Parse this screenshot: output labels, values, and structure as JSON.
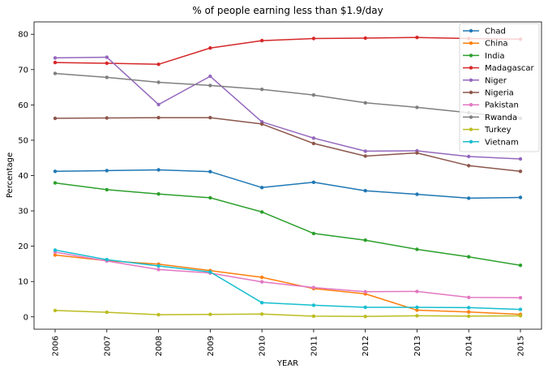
{
  "chart_data": {
    "type": "line",
    "title": "% of people earning less than $1.9/day",
    "xlabel": "YEAR",
    "ylabel": "Percentage",
    "x": [
      "2006",
      "2007",
      "2008",
      "2009",
      "2010",
      "2011",
      "2012",
      "2013",
      "2014",
      "2015"
    ],
    "ylim": [
      -3.5,
      83.5
    ],
    "yticks": [
      0,
      10,
      20,
      30,
      40,
      50,
      60,
      70,
      80
    ],
    "grid": false,
    "legend_position": "top-right",
    "series": [
      {
        "name": "Chad",
        "color": "#1f77b4",
        "values": [
          41.2,
          41.4,
          41.6,
          41.1,
          36.6,
          38.1,
          35.7,
          34.7,
          33.6,
          33.8
        ]
      },
      {
        "name": "China",
        "color": "#ff7f0e",
        "values": [
          17.5,
          15.9,
          14.9,
          13.1,
          11.2,
          8.0,
          6.5,
          1.9,
          1.4,
          0.7
        ]
      },
      {
        "name": "India",
        "color": "#2ca02c",
        "values": [
          37.9,
          36.0,
          34.8,
          33.7,
          29.7,
          23.6,
          21.7,
          19.1,
          17.0,
          14.6
        ]
      },
      {
        "name": "Madagascar",
        "color": "#d62728",
        "values": [
          72.0,
          71.8,
          71.5,
          76.1,
          78.2,
          78.8,
          78.9,
          79.1,
          78.8,
          78.6
        ]
      },
      {
        "name": "Niger",
        "color": "#9467bd",
        "values": [
          73.3,
          73.5,
          60.1,
          68.1,
          55.2,
          50.6,
          46.9,
          47.0,
          45.4,
          44.7
        ]
      },
      {
        "name": "Nigeria",
        "color": "#8c564b",
        "values": [
          56.2,
          56.3,
          56.4,
          56.4,
          54.6,
          49.1,
          45.5,
          46.4,
          42.8,
          41.2
        ]
      },
      {
        "name": "Pakistan",
        "color": "#e377c2",
        "values": [
          18.3,
          15.8,
          13.4,
          12.4,
          9.9,
          8.3,
          7.1,
          7.2,
          5.5,
          5.4
        ]
      },
      {
        "name": "Rwanda",
        "color": "#7f7f7f",
        "values": [
          68.9,
          67.8,
          66.4,
          65.5,
          64.4,
          62.8,
          60.6,
          59.3,
          57.8,
          56.2
        ]
      },
      {
        "name": "Turkey",
        "color": "#bcbd22",
        "values": [
          1.8,
          1.3,
          0.6,
          0.7,
          0.8,
          0.2,
          0.1,
          0.3,
          0.2,
          0.3
        ]
      },
      {
        "name": "Vietnam",
        "color": "#17becf",
        "values": [
          18.9,
          16.2,
          14.4,
          12.7,
          4.0,
          3.3,
          2.7,
          2.7,
          2.6,
          2.1
        ]
      }
    ]
  }
}
